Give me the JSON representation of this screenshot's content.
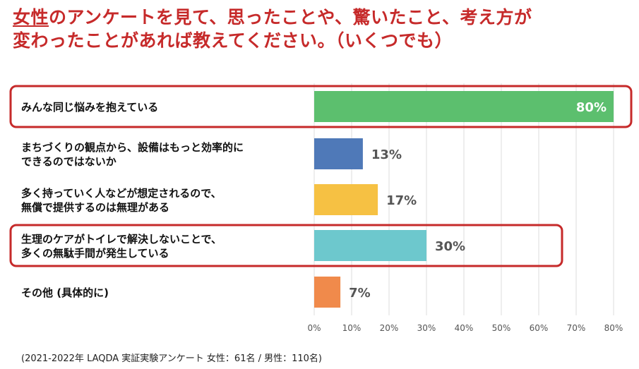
{
  "title": {
    "underlined": "女性",
    "line1_rest": "のアンケートを見て、思ったことや、驚いたこと、考え方が",
    "line2": "変わったことがあれば教えてください。（いくつでも）"
  },
  "footnote": "(2021-2022年 LAQDA 実証実験アンケート 女性：61名 / 男性：110名)",
  "colors": {
    "title": "#c62a2a",
    "highlight_box": "#c62a2a",
    "grid": "#dddddd"
  },
  "chart_data": {
    "type": "bar",
    "orientation": "horizontal",
    "categories": [
      [
        "みんな同じ悩みを抱えている"
      ],
      [
        "まちづくりの観点から、設備はもっと効率的に",
        "できるのではないか"
      ],
      [
        "多く持っていく人などが想定されるので、",
        "無償で提供するのは無理がある"
      ],
      [
        "生理のケアがトイレで解決しないことで、",
        "多くの無駄手間が発生している"
      ],
      [
        "その他 (具体的に)"
      ]
    ],
    "values": [
      80,
      13,
      17,
      30,
      7
    ],
    "value_labels": [
      "80%",
      "13%",
      "17%",
      "30%",
      "7%"
    ],
    "bar_colors": [
      "#5cbf6e",
      "#4f79b8",
      "#f6c143",
      "#6dc8cd",
      "#f08a4b"
    ],
    "highlighted": [
      true,
      false,
      false,
      true,
      false
    ],
    "xlim": [
      0,
      80
    ],
    "xticks": [
      "0%",
      "10%",
      "20%",
      "30%",
      "40%",
      "50%",
      "60%",
      "70%",
      "80%"
    ],
    "grid": "vertical"
  }
}
